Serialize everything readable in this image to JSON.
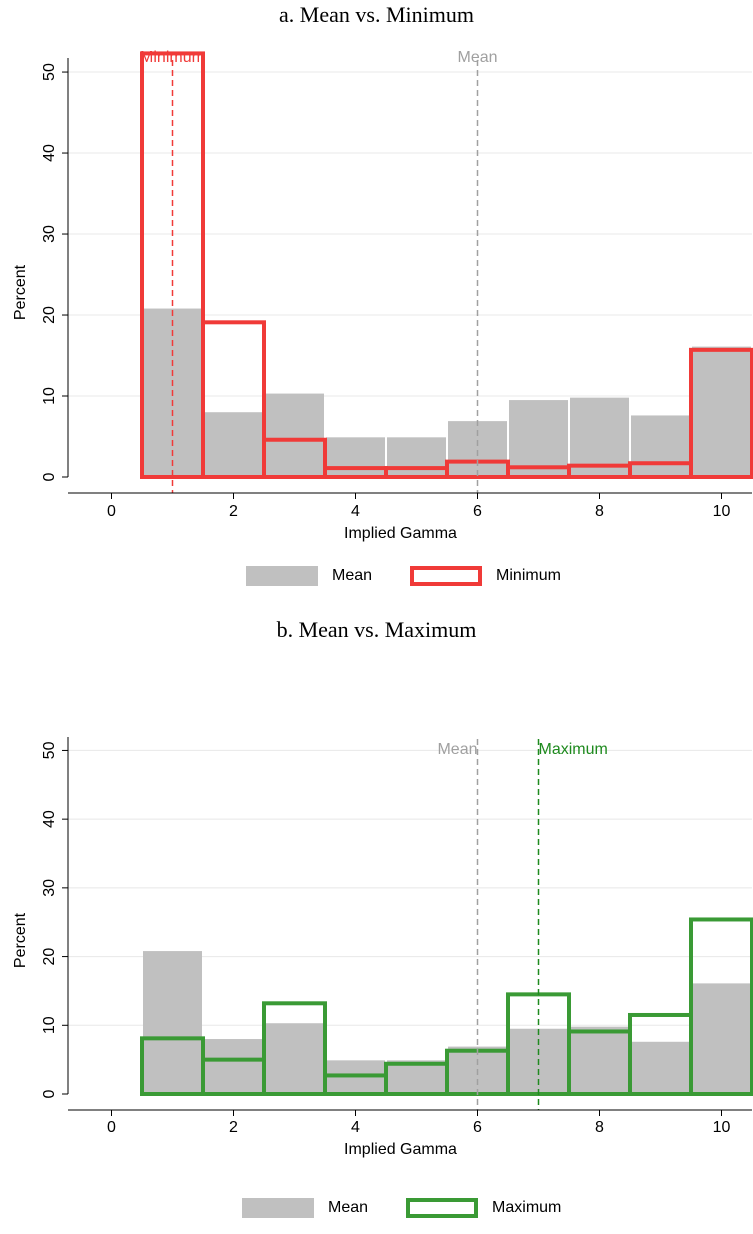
{
  "chart_data": [
    {
      "type": "bar",
      "title": "a. Mean vs. Minimum",
      "xlabel": "Implied Gamma",
      "ylabel": "Percent",
      "xlim": [
        -0.5,
        10.5
      ],
      "ylim": [
        0,
        52
      ],
      "xticks": [
        "0",
        "2",
        "4",
        "6",
        "8",
        "10"
      ],
      "yticks": [
        "0",
        "10",
        "20",
        "30",
        "40",
        "50"
      ],
      "grid": true,
      "legend_position": "bottom",
      "bins": [
        1,
        2,
        3,
        4,
        5,
        6,
        7,
        8,
        9,
        10
      ],
      "series": [
        {
          "name": "Mean",
          "style": "filled",
          "color": "#c0c0c0",
          "values": [
            20.8,
            8.0,
            10.3,
            4.9,
            4.9,
            6.9,
            9.5,
            9.8,
            7.6,
            16.1
          ]
        },
        {
          "name": "Minimum",
          "style": "outline",
          "color": "#f03a38",
          "values": [
            52.3,
            19.1,
            4.6,
            1.1,
            1.1,
            1.9,
            1.2,
            1.4,
            1.7,
            15.7
          ]
        }
      ],
      "reference_lines": [
        {
          "label": "Minimum",
          "x": 1,
          "color": "#f03a38"
        },
        {
          "label": "Mean",
          "x": 6,
          "color": "#a0a0a0"
        }
      ]
    },
    {
      "type": "bar",
      "title": "b. Mean vs. Maximum",
      "xlabel": "Implied Gamma",
      "ylabel": "Percent",
      "xlim": [
        -0.5,
        10.5
      ],
      "ylim": [
        0,
        52
      ],
      "xticks": [
        "0",
        "2",
        "4",
        "6",
        "8",
        "10"
      ],
      "yticks": [
        "0",
        "10",
        "20",
        "30",
        "40",
        "50"
      ],
      "grid": true,
      "legend_position": "bottom",
      "bins": [
        1,
        2,
        3,
        4,
        5,
        6,
        7,
        8,
        9,
        10
      ],
      "series": [
        {
          "name": "Mean",
          "style": "filled",
          "color": "#c0c0c0",
          "values": [
            20.8,
            8.0,
            10.3,
            4.9,
            4.9,
            6.9,
            9.5,
            9.8,
            7.6,
            16.1
          ]
        },
        {
          "name": "Maximum",
          "style": "outline",
          "color": "#3a9a35",
          "values": [
            8.1,
            5.0,
            13.2,
            2.7,
            4.4,
            6.3,
            14.5,
            9.1,
            11.5,
            25.4
          ]
        }
      ],
      "reference_lines": [
        {
          "label": "Mean",
          "x": 6,
          "color": "#a0a0a0"
        },
        {
          "label": "Maximum",
          "x": 7,
          "color": "#1e8a1e"
        }
      ]
    }
  ]
}
